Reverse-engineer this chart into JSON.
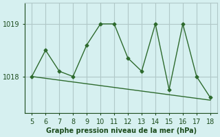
{
  "data_x": [
    5,
    6,
    7,
    8,
    9,
    10,
    11,
    12,
    13,
    14,
    15,
    16,
    17,
    18
  ],
  "data_y": [
    1018.0,
    1018.5,
    1018.1,
    1018.0,
    1018.6,
    1019.0,
    1019.0,
    1018.35,
    1018.1,
    1019.0,
    1017.75,
    1019.0,
    1018.0,
    1017.6
  ],
  "trend_x": [
    5,
    18
  ],
  "trend_y": [
    1018.0,
    1017.55
  ],
  "xlim": [
    4.5,
    18.5
  ],
  "ylim": [
    1017.3,
    1019.4
  ],
  "yticks": [
    1018,
    1019
  ],
  "xticks": [
    5,
    6,
    7,
    8,
    9,
    10,
    11,
    12,
    13,
    14,
    15,
    16,
    17,
    18
  ],
  "line_color": "#2d6a2d",
  "trend_color": "#2d6a2d",
  "bg_color": "#d6f0f0",
  "grid_color": "#b0c8c8",
  "text_color": "#1a4a1a",
  "xlabel": "Graphe pression niveau de la mer (hPa)",
  "xlabel_fontsize": 7,
  "tick_fontsize": 7
}
